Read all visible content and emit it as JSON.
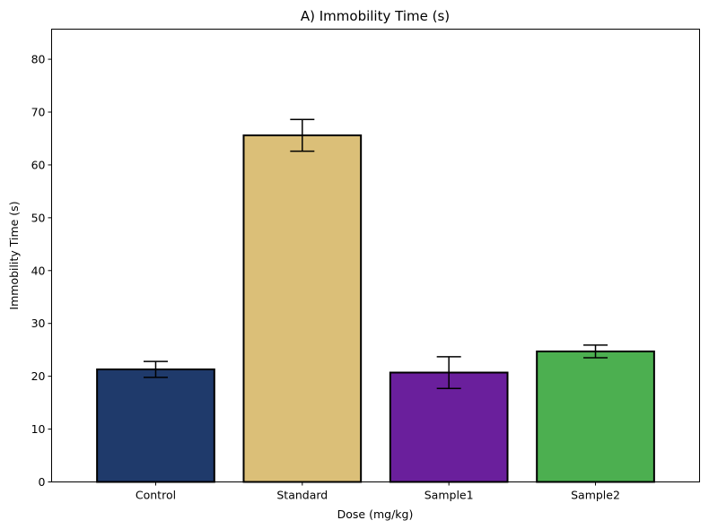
{
  "chart_data": {
    "type": "bar",
    "title": "A) Immobility Time (s)",
    "xlabel": "Dose (mg/kg)",
    "ylabel": "Immobility Time (s)",
    "categories": [
      "Control",
      "Standard",
      "Sample1",
      "Sample2"
    ],
    "values": [
      21.3,
      65.6,
      20.7,
      24.7
    ],
    "errors": [
      1.5,
      3.0,
      3.0,
      1.2
    ],
    "colors": [
      "#1f3a6b",
      "#dbbf78",
      "#6a1f9c",
      "#4caf50"
    ],
    "ylim": [
      0,
      85.7
    ],
    "yticks": [
      0,
      10,
      20,
      30,
      40,
      50,
      60,
      70,
      80
    ],
    "grid": false,
    "legend": "none"
  }
}
